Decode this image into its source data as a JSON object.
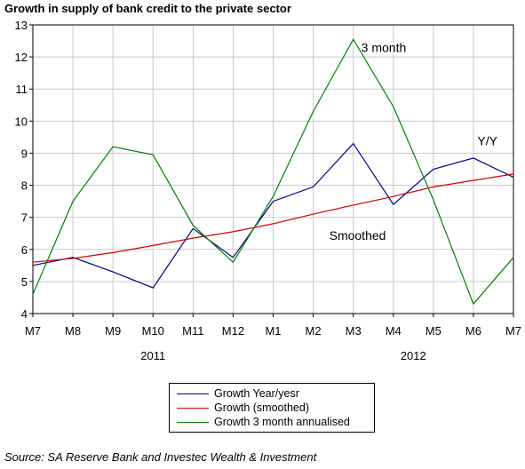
{
  "title": "Growth in supply of bank credit to the private sector",
  "source": "Source: SA Reserve Bank and Investec Wealth & Investment",
  "chart_data": {
    "type": "line",
    "categories": [
      "M7",
      "M8",
      "M9",
      "M10",
      "M11",
      "M12",
      "M1",
      "M2",
      "M3",
      "M4",
      "M5",
      "M6",
      "M7"
    ],
    "year_labels": [
      {
        "label": "2011",
        "category_index": 3
      },
      {
        "label": "2012",
        "category_index": 9.5
      }
    ],
    "ylim": [
      4,
      13
    ],
    "yticks": [
      4,
      5,
      6,
      7,
      8,
      9,
      10,
      11,
      12,
      13
    ],
    "grid": true,
    "legend_position": "bottom",
    "series": [
      {
        "name": "Growth Year/yesr",
        "color": "#00008b",
        "values": [
          5.5,
          5.75,
          5.3,
          4.8,
          6.65,
          5.75,
          7.5,
          7.95,
          9.3,
          7.4,
          8.5,
          8.85,
          8.25
        ]
      },
      {
        "name": "Growth (smoothed)",
        "color": "#d00000",
        "values": [
          5.6,
          5.72,
          5.9,
          6.12,
          6.35,
          6.55,
          6.8,
          7.1,
          7.38,
          7.65,
          7.95,
          8.15,
          8.35
        ]
      },
      {
        "name": "Growth 3 month annualised",
        "color": "#008000",
        "values": [
          4.6,
          7.5,
          9.2,
          8.95,
          6.75,
          5.6,
          7.65,
          10.3,
          12.55,
          10.45,
          7.55,
          4.3,
          5.75
        ]
      }
    ],
    "annotations": [
      {
        "text": "3 month",
        "category_index": 8.2,
        "y": 12.15
      },
      {
        "text": "Y/Y",
        "category_index": 11.1,
        "y": 9.25
      },
      {
        "text": "Smoothed",
        "category_index": 7.4,
        "y": 6.3
      }
    ]
  }
}
